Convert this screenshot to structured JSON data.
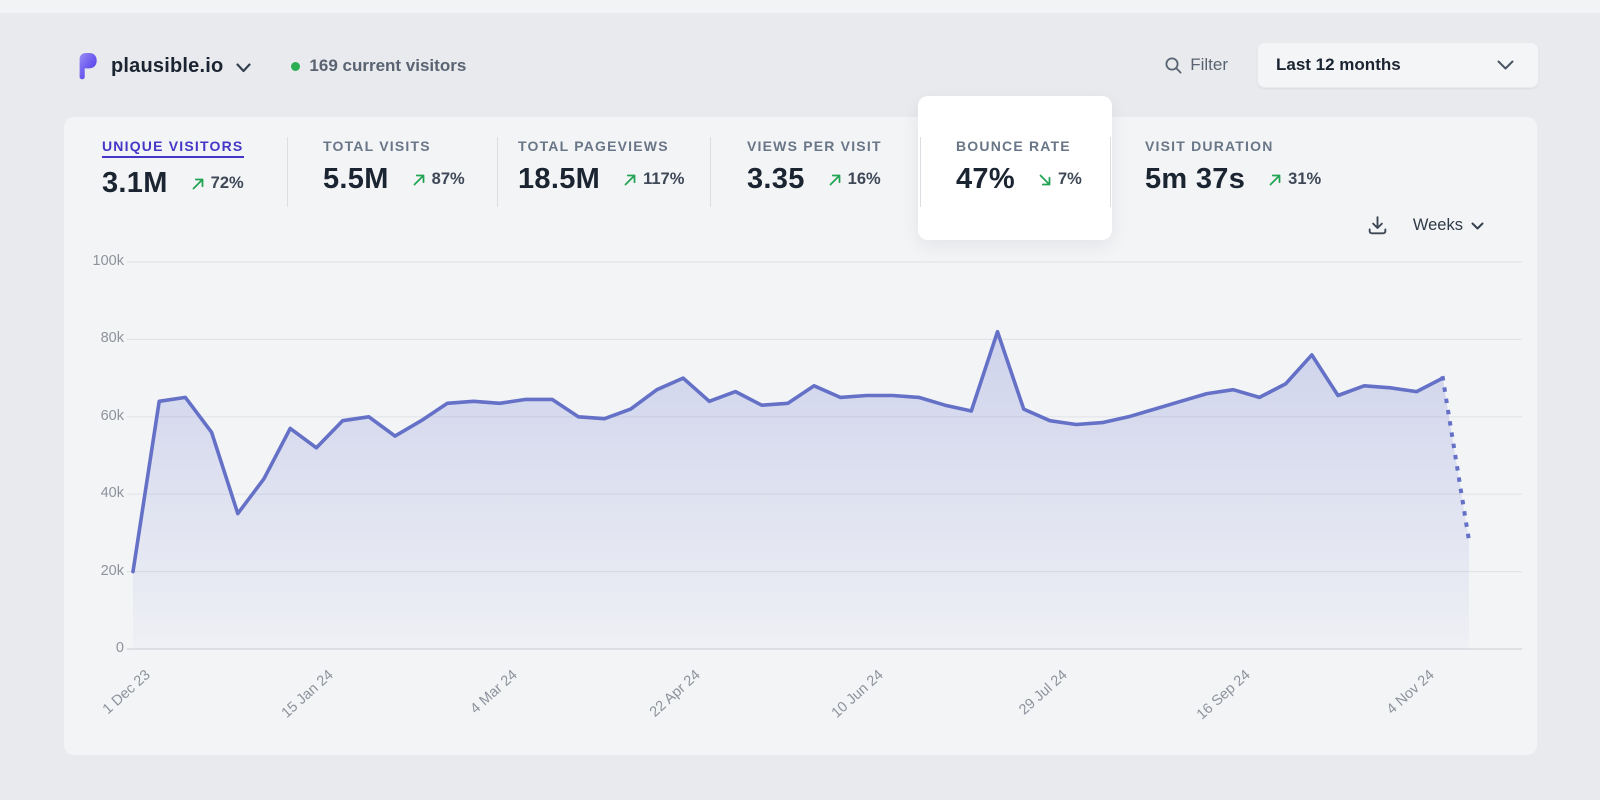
{
  "colors": {
    "accent": "#6471c7",
    "green": "#23a455",
    "active_metric": "#4437c8",
    "card_bg": "#f3f4f6"
  },
  "header": {
    "site_name": "plausible.io",
    "current_visitors": "169 current visitors",
    "filter_label": "Filter",
    "date_range": "Last 12 months"
  },
  "stats": {
    "items": [
      {
        "label": "UNIQUE VISITORS",
        "value": "3.1M",
        "change": "72%",
        "direction": "up",
        "active": true
      },
      {
        "label": "TOTAL VISITS",
        "value": "5.5M",
        "change": "87%",
        "direction": "up",
        "active": false
      },
      {
        "label": "TOTAL PAGEVIEWS",
        "value": "18.5M",
        "change": "117%",
        "direction": "up",
        "active": false
      },
      {
        "label": "VIEWS PER VISIT",
        "value": "3.35",
        "change": "16%",
        "direction": "up",
        "active": false
      },
      {
        "label": "BOUNCE RATE",
        "value": "47%",
        "change": "7%",
        "direction": "down",
        "active": false,
        "highlighted": true
      },
      {
        "label": "VISIT DURATION",
        "value": "5m 37s",
        "change": "31%",
        "direction": "up",
        "active": false
      }
    ]
  },
  "toolbar": {
    "interval": "Weeks"
  },
  "chart_data": {
    "type": "area",
    "title": "Unique visitors by week",
    "metric": "Unique visitors",
    "interval": "week",
    "ylim_thousands": [
      0,
      100
    ],
    "y_tick_values": [
      0,
      20,
      40,
      60,
      80,
      100
    ],
    "y_tick_labels": [
      "0",
      "20k",
      "40k",
      "60k",
      "80k",
      "100k"
    ],
    "x_tick_labels": [
      "1 Dec 23",
      "15 Jan 24",
      "4 Mar 24",
      "22 Apr 24",
      "10 Jun 24",
      "29 Jul 24",
      "16 Sep 24",
      "4 Nov 24"
    ],
    "x_tick_indices": [
      0,
      7,
      14,
      21,
      28,
      35,
      42,
      49
    ],
    "values_thousands": [
      20,
      64,
      65,
      56,
      35,
      44,
      57,
      52,
      59,
      60,
      55,
      59,
      63.5,
      64,
      63.5,
      64.5,
      64.5,
      60,
      59.5,
      62,
      67,
      70,
      64,
      66.5,
      63,
      63.5,
      68,
      65,
      65.5,
      65.5,
      65,
      63,
      61.5,
      82,
      62,
      59,
      58,
      58.5,
      60,
      62,
      64,
      66,
      67,
      65,
      68.5,
      76,
      65.5,
      68,
      67.5,
      66.5,
      70,
      28
    ],
    "last_point_provisional": true,
    "grid": true,
    "line_color": "#6471c7",
    "legend": "none"
  }
}
